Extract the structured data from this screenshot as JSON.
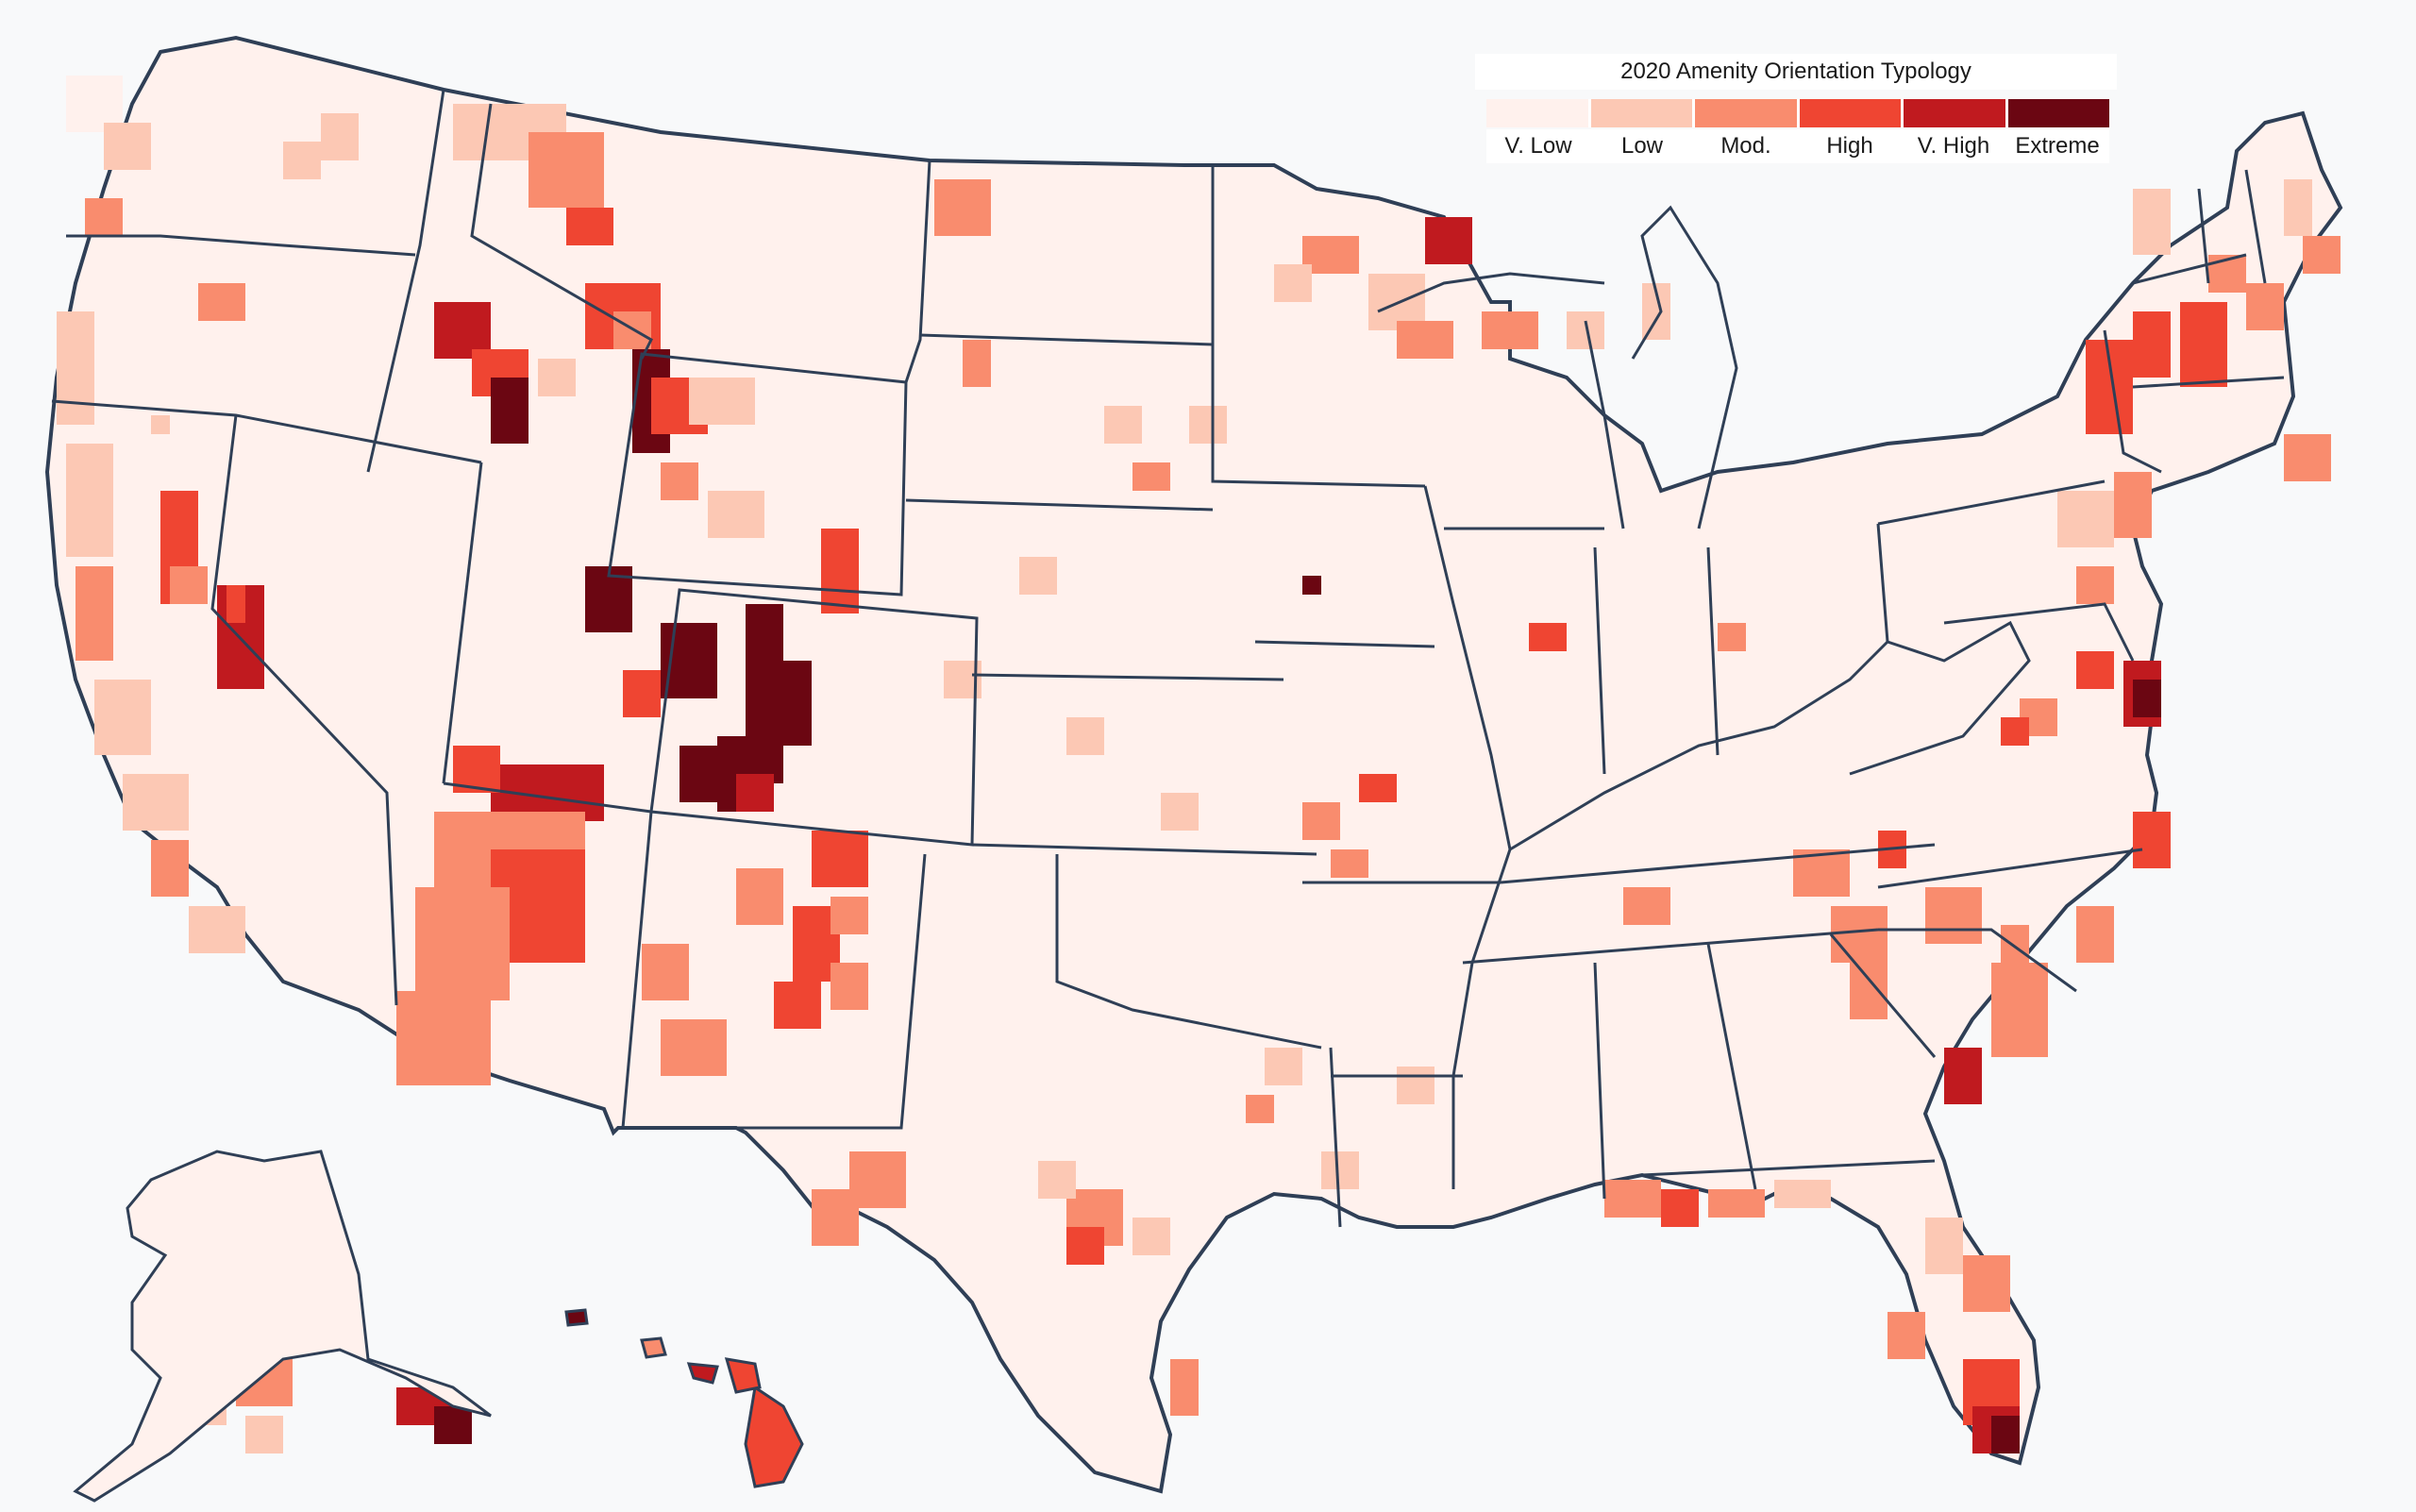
{
  "legend": {
    "title": "2020 Amenity Orientation Typology",
    "classes": [
      {
        "label": "V. Low",
        "color": "#fff1ed"
      },
      {
        "label": "Low",
        "color": "#fcc8b4"
      },
      {
        "label": "Mod.",
        "color": "#f98c6e"
      },
      {
        "label": "High",
        "color": "#ef4532"
      },
      {
        "label": "V. High",
        "color": "#c01a1f"
      },
      {
        "label": "Extreme",
        "color": "#6b0612"
      }
    ]
  },
  "colors": {
    "background": "#f8f9fa",
    "state_border": "#2f3f56",
    "base_fill": "#fff1ed"
  }
}
